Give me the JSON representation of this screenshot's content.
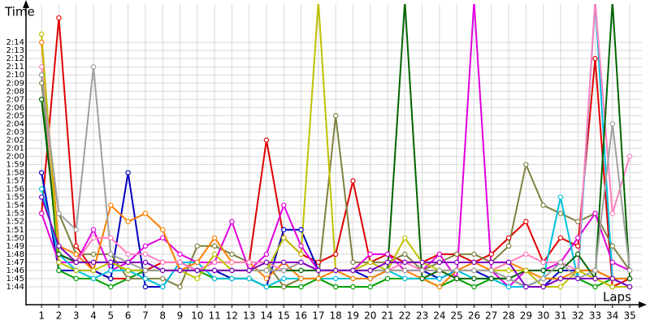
{
  "chart_data": {
    "type": "line",
    "y_label": "Time",
    "x_label": "Laps",
    "grid": true,
    "xlim": [
      0.1,
      35.7
    ],
    "ylim": [
      101.8,
      138.7
    ],
    "x": [
      1,
      2,
      3,
      4,
      5,
      6,
      7,
      8,
      9,
      10,
      11,
      12,
      13,
      14,
      15,
      16,
      17,
      18,
      19,
      20,
      21,
      22,
      23,
      24,
      25,
      26,
      27,
      28,
      29,
      30,
      31,
      32,
      33,
      34,
      35
    ],
    "xticks": [
      1,
      2,
      3,
      4,
      5,
      6,
      7,
      8,
      9,
      10,
      11,
      12,
      13,
      14,
      15,
      16,
      17,
      18,
      19,
      20,
      21,
      22,
      23,
      24,
      25,
      26,
      27,
      28,
      29,
      30,
      31,
      32,
      33,
      34,
      35
    ],
    "yticks": [
      {
        "value": 104,
        "label": "1:44"
      },
      {
        "value": 105,
        "label": "1:45"
      },
      {
        "value": 106,
        "label": "1:46"
      },
      {
        "value": 107,
        "label": "1:47"
      },
      {
        "value": 108,
        "label": "1:48"
      },
      {
        "value": 109,
        "label": "1:49"
      },
      {
        "value": 110,
        "label": "1:50"
      },
      {
        "value": 111,
        "label": "1:51"
      },
      {
        "value": 112,
        "label": "1:52"
      },
      {
        "value": 113,
        "label": "1:53"
      },
      {
        "value": 114,
        "label": "1:54"
      },
      {
        "value": 115,
        "label": "1:55"
      },
      {
        "value": 116,
        "label": "1:56"
      },
      {
        "value": 117,
        "label": "1:57"
      },
      {
        "value": 118,
        "label": "1:58"
      },
      {
        "value": 119,
        "label": "1:59"
      },
      {
        "value": 120,
        "label": "2:00"
      },
      {
        "value": 121,
        "label": "2:01"
      },
      {
        "value": 122,
        "label": "2:02"
      },
      {
        "value": 123,
        "label": "2:03"
      },
      {
        "value": 124,
        "label": "2:04"
      },
      {
        "value": 125,
        "label": "2:05"
      },
      {
        "value": 126,
        "label": "2:06"
      },
      {
        "value": 127,
        "label": "2:07"
      },
      {
        "value": 128,
        "label": "2:08"
      },
      {
        "value": 129,
        "label": "2:09"
      },
      {
        "value": 130,
        "label": "2:10"
      },
      {
        "value": 131,
        "label": "2:11"
      },
      {
        "value": 132,
        "label": "2:12"
      },
      {
        "value": 133,
        "label": "2:13"
      },
      {
        "value": 134,
        "label": "2:14"
      }
    ],
    "series": [
      {
        "color": "#e00000",
        "values": [
          113,
          137,
          109,
          106,
          105,
          105,
          106,
          107,
          107,
          106,
          107,
          107,
          107,
          122,
          110,
          108,
          107,
          108,
          117,
          107,
          108,
          107,
          107,
          108,
          108,
          107,
          108,
          110,
          112,
          107,
          110,
          109,
          132,
          104,
          105
        ]
      },
      {
        "color": "#0000c0",
        "values": [
          118,
          106,
          106,
          106,
          105,
          118,
          104,
          104,
          107,
          106,
          106,
          105,
          105,
          104,
          111,
          111,
          106,
          106,
          106,
          105,
          106,
          106,
          106,
          105,
          106,
          106,
          105,
          105,
          104,
          104,
          106,
          106,
          106,
          105,
          105
        ]
      },
      {
        "color": "#00a000",
        "values": [
          130,
          106,
          105,
          105,
          104,
          105,
          106,
          106,
          106,
          106,
          105,
          105,
          105,
          104,
          104,
          104,
          105,
          104,
          104,
          104,
          105,
          105,
          105,
          104,
          105,
          104,
          105,
          105,
          104,
          105,
          105,
          105,
          104,
          105,
          105
        ]
      },
      {
        "color": "#808040",
        "values": [
          129,
          113,
          108,
          108,
          108,
          105,
          105,
          105,
          104,
          109,
          109,
          108,
          107,
          107,
          104,
          105,
          105,
          125,
          107,
          107,
          107,
          108,
          106,
          107,
          108,
          108,
          107,
          109,
          119,
          114,
          113,
          112,
          113,
          109,
          106
        ]
      },
      {
        "color": "#e000e0",
        "values": [
          113,
          107,
          107,
          111,
          106,
          107,
          109,
          110,
          108,
          107,
          107,
          112,
          106,
          108,
          114,
          109,
          106,
          106,
          106,
          108,
          108,
          106,
          106,
          108,
          105,
          139,
          106,
          104,
          106,
          106,
          107,
          110,
          113,
          107,
          106
        ]
      },
      {
        "color": "#00c0e0",
        "values": [
          116,
          108,
          106,
          105,
          106,
          106,
          105,
          104,
          107,
          107,
          105,
          105,
          105,
          104,
          105,
          105,
          105,
          105,
          105,
          105,
          106,
          105,
          105,
          105,
          106,
          105,
          105,
          104,
          104,
          105,
          115,
          105,
          139,
          105,
          104
        ]
      },
      {
        "color": "#ff8000",
        "values": [
          134,
          109,
          108,
          106,
          114,
          112,
          113,
          111,
          106,
          107,
          110,
          107,
          107,
          105,
          107,
          105,
          105,
          106,
          105,
          105,
          106,
          106,
          105,
          104,
          106,
          107,
          106,
          107,
          106,
          105,
          105,
          106,
          106,
          105,
          105
        ]
      },
      {
        "color": "#ff80c0",
        "values": [
          131,
          108,
          107,
          110,
          110,
          108,
          108,
          107,
          107,
          106,
          107,
          107,
          107,
          107,
          106,
          107,
          106,
          106,
          106,
          106,
          106,
          107,
          106,
          106,
          106,
          106,
          106,
          107,
          108,
          107,
          107,
          106,
          139,
          113,
          120
        ]
      },
      {
        "color": "#006400",
        "values": [
          127,
          108,
          107,
          107,
          107,
          106,
          106,
          106,
          106,
          106,
          106,
          106,
          106,
          106,
          106,
          106,
          106,
          106,
          106,
          106,
          106,
          139,
          105,
          106,
          105,
          105,
          105,
          105,
          106,
          106,
          106,
          108,
          105,
          139,
          105
        ]
      },
      {
        "color": "#c0c000",
        "values": [
          135,
          107,
          106,
          106,
          107,
          106,
          106,
          106,
          106,
          105,
          108,
          106,
          106,
          106,
          110,
          108,
          139,
          106,
          106,
          107,
          106,
          110,
          107,
          106,
          106,
          106,
          106,
          106,
          106,
          104,
          104,
          106,
          105,
          104,
          104
        ]
      },
      {
        "color": "#a0a0a0",
        "values": [
          130,
          113,
          111,
          131,
          108,
          107,
          106,
          106,
          106,
          106,
          106,
          106,
          106,
          106,
          106,
          107,
          106,
          106,
          106,
          106,
          106,
          106,
          106,
          106,
          106,
          106,
          106,
          105,
          104,
          105,
          107,
          105,
          106,
          124,
          106
        ]
      },
      {
        "color": "#8000c0",
        "values": [
          115,
          109,
          107,
          107,
          107,
          107,
          107,
          106,
          106,
          106,
          106,
          106,
          106,
          107,
          107,
          107,
          106,
          106,
          106,
          106,
          107,
          107,
          107,
          107,
          107,
          107,
          107,
          107,
          104,
          104,
          105,
          105,
          105,
          105,
          104
        ]
      }
    ]
  }
}
